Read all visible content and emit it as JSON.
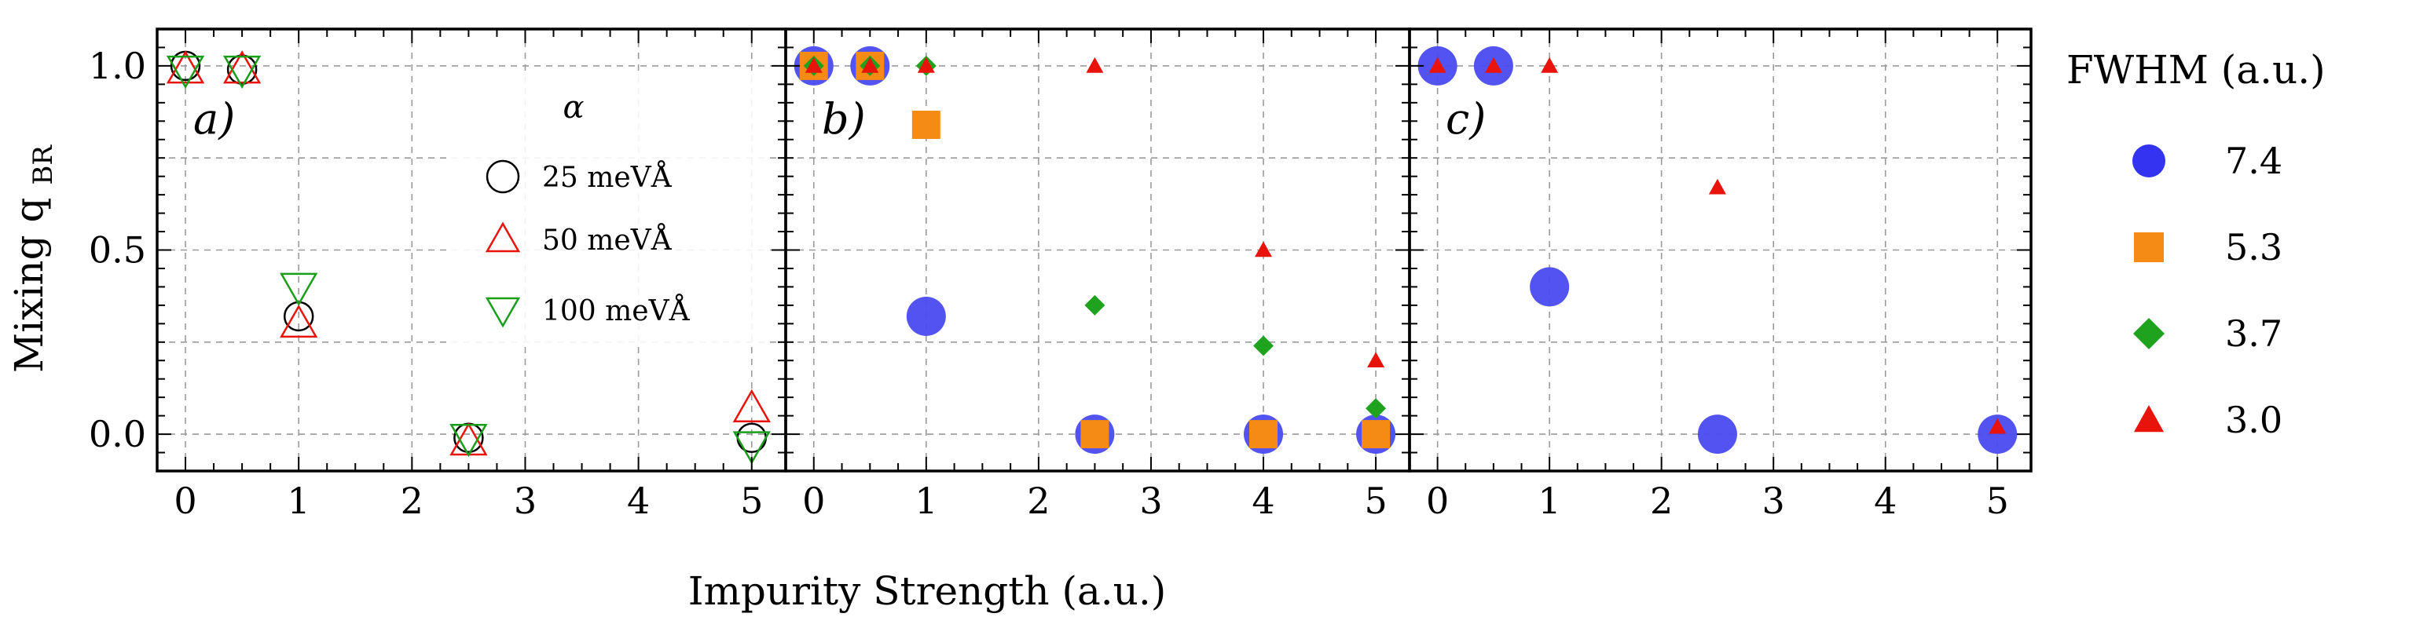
{
  "chart_data": {
    "type": "scatter",
    "xlabel": "Impurity Strength (a.u.)",
    "ylabel_main": "Mixing q",
    "ylabel_sub": "BR",
    "xlim": [
      -0.25,
      5.3
    ],
    "ylim": [
      -0.1,
      1.1
    ],
    "x_ticks": [
      0,
      1,
      2,
      3,
      4,
      5
    ],
    "x_tick_labels": [
      "0",
      "1",
      "2",
      "3",
      "4",
      "5"
    ],
    "y_ticks": [
      0.0,
      0.5,
      1.0
    ],
    "y_tick_labels": [
      "0.0",
      "0.5",
      "1.0"
    ],
    "grid_x": [
      0,
      1,
      2,
      3,
      4,
      5
    ],
    "grid_y": [
      0.0,
      0.25,
      0.5,
      0.75,
      1.0
    ],
    "grid": true,
    "panels": [
      {
        "tag": "a)",
        "legend": {
          "title": "α",
          "placement": "inside-upper-right",
          "entries": [
            "25 meVÅ",
            "50 meVÅ",
            "100 meVÅ"
          ]
        },
        "series": [
          {
            "name": "25 meVÅ",
            "marker": "circle-open",
            "color": "#000000",
            "x": [
              0,
              0.5,
              1,
              2.5,
              5
            ],
            "y": [
              1.0,
              0.99,
              0.32,
              -0.01,
              -0.01
            ]
          },
          {
            "name": "50 meVÅ",
            "marker": "triangle-up-open",
            "color": "#e8140c",
            "x": [
              0,
              0.5,
              1,
              2.5,
              5
            ],
            "y": [
              0.99,
              0.99,
              0.3,
              -0.02,
              0.07
            ]
          },
          {
            "name": "100 meVÅ",
            "marker": "triangle-down-open",
            "color": "#1a9e1a",
            "x": [
              0,
              0.5,
              1,
              2.5,
              5
            ],
            "y": [
              0.99,
              0.99,
              0.4,
              -0.01,
              -0.03
            ]
          }
        ]
      },
      {
        "tag": "b)",
        "series": [
          {
            "name": "7.4",
            "marker": "circle",
            "color": "#4a4af0",
            "x": [
              0,
              0.5,
              1,
              2.5,
              4,
              5
            ],
            "y": [
              1.0,
              1.0,
              0.32,
              0.0,
              0.0,
              0.0
            ]
          },
          {
            "name": "5.3",
            "marker": "square",
            "color": "#f58a14",
            "x": [
              0,
              0.5,
              1,
              2.5,
              4,
              5
            ],
            "y": [
              1.0,
              1.0,
              0.84,
              0.0,
              0.0,
              0.0
            ]
          },
          {
            "name": "3.7",
            "marker": "diamond",
            "color": "#1fa31f",
            "x": [
              0,
              0.5,
              1,
              2.5,
              4,
              5
            ],
            "y": [
              1.0,
              1.0,
              1.0,
              0.35,
              0.24,
              0.07
            ]
          },
          {
            "name": "3.0",
            "marker": "triangle-up",
            "color": "#e8140c",
            "x": [
              0,
              0.5,
              1,
              2.5,
              4,
              5
            ],
            "y": [
              1.0,
              1.0,
              1.0,
              1.0,
              0.5,
              0.2
            ]
          }
        ]
      },
      {
        "tag": "c)",
        "series": [
          {
            "name": "7.4",
            "marker": "circle",
            "color": "#4a4af0",
            "x": [
              0,
              0.5,
              1,
              2.5,
              5
            ],
            "y": [
              1.0,
              1.0,
              0.4,
              0.0,
              0.0
            ]
          },
          {
            "name": "3.0",
            "marker": "triangle-up",
            "color": "#e8140c",
            "x": [
              0,
              0.5,
              1,
              2.5,
              5
            ],
            "y": [
              1.0,
              1.0,
              1.0,
              0.67,
              0.02
            ]
          }
        ]
      }
    ],
    "legend_right": {
      "title": "FWHM (a.u.)",
      "placement": "right-outside",
      "entries": [
        {
          "label": "7.4",
          "marker": "circle",
          "color": "#2828f0"
        },
        {
          "label": "5.3",
          "marker": "square",
          "color": "#f58a14"
        },
        {
          "label": "3.7",
          "marker": "diamond",
          "color": "#1fa31f"
        },
        {
          "label": "3.0",
          "marker": "triangle-up",
          "color": "#e8140c"
        }
      ]
    }
  }
}
